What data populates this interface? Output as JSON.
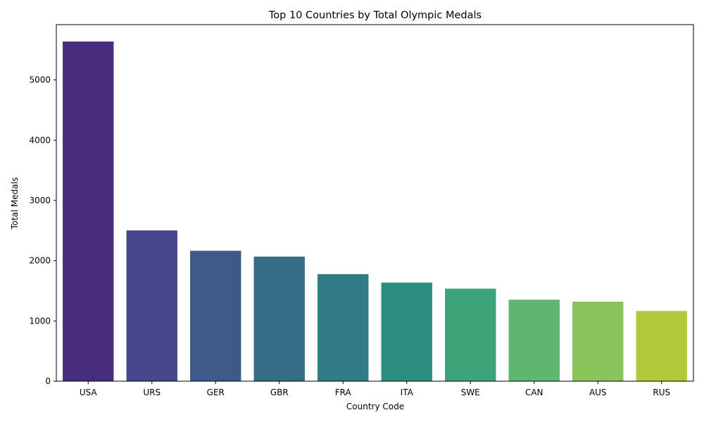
{
  "chart_data": {
    "type": "bar",
    "title": "Top 10 Countries by Total Olympic Medals",
    "xlabel": "Country Code",
    "ylabel": "Total Medals",
    "categories": [
      "USA",
      "URS",
      "GER",
      "GBR",
      "FRA",
      "ITA",
      "SWE",
      "CAN",
      "AUS",
      "RUS"
    ],
    "values": [
      5637,
      2503,
      2165,
      2068,
      1777,
      1637,
      1536,
      1352,
      1320,
      1165
    ],
    "ylim": [
      0,
      5918
    ],
    "yticks": [
      0,
      1000,
      2000,
      3000,
      4000,
      5000
    ],
    "colors": [
      "#472d7b",
      "#46468b",
      "#3d5a88",
      "#366c86",
      "#2f7d83",
      "#2b8e7e",
      "#3da47a",
      "#5fb66e",
      "#8ac45b",
      "#b2c93a"
    ],
    "grid": false,
    "legend": "none"
  }
}
